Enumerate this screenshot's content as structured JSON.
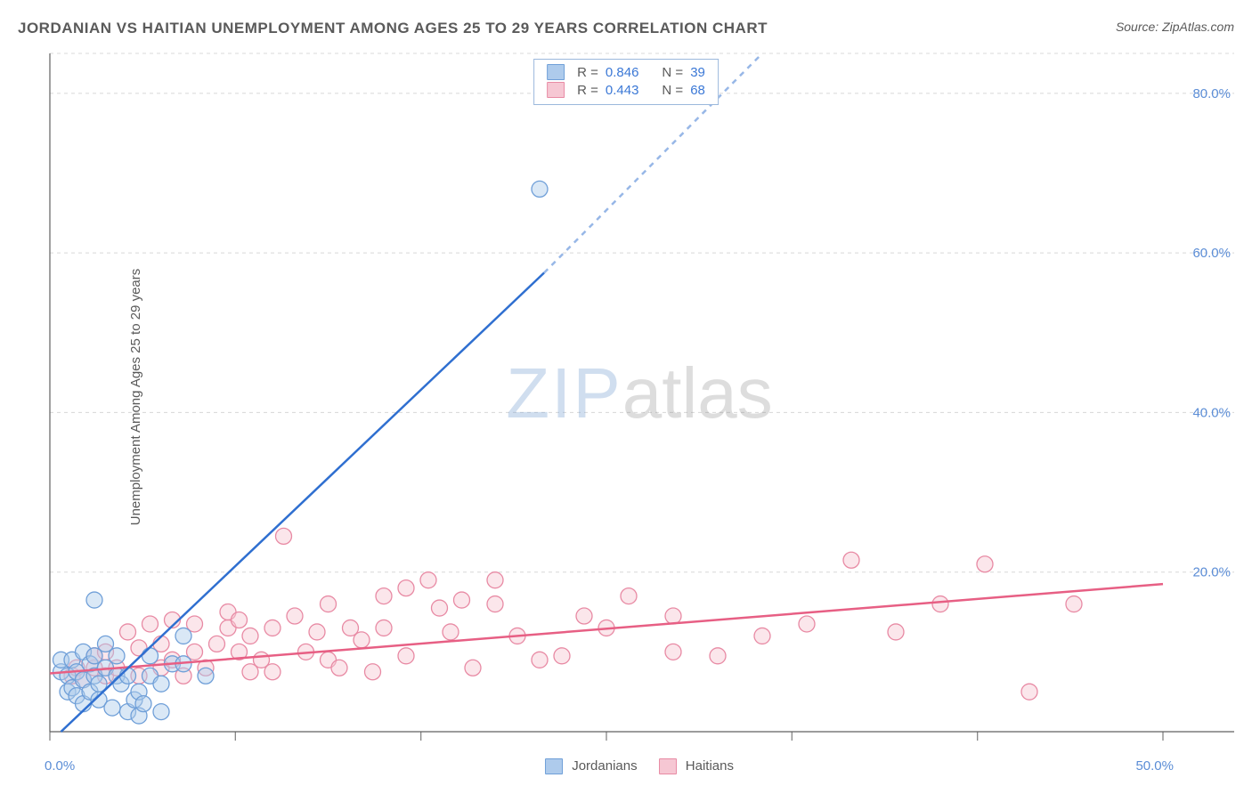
{
  "title": "JORDANIAN VS HAITIAN UNEMPLOYMENT AMONG AGES 25 TO 29 YEARS CORRELATION CHART",
  "source_label": "Source:",
  "source_value": "ZipAtlas.com",
  "ylabel": "Unemployment Among Ages 25 to 29 years",
  "watermark": {
    "zip": "ZIP",
    "atlas": "atlas"
  },
  "chart": {
    "type": "scatter",
    "background_color": "#ffffff",
    "grid_color": "#d8d8d8",
    "grid_dash": "4,4",
    "axis_color": "#606060",
    "tick_color": "#606060",
    "tick_label_color": "#5b8dd6",
    "xlim": [
      0,
      50
    ],
    "ylim": [
      0,
      85
    ],
    "xticks": [
      0,
      8.33,
      16.67,
      25,
      33.33,
      41.67,
      50
    ],
    "yticks": [
      20,
      40,
      60,
      80
    ],
    "ytick_labels": [
      "20.0%",
      "40.0%",
      "60.0%",
      "80.0%"
    ],
    "xmin_label": "0.0%",
    "xmax_label": "50.0%",
    "marker_radius": 9,
    "marker_opacity": 0.45,
    "series": [
      {
        "name": "Jordanians",
        "color_fill": "#aecbec",
        "color_stroke": "#6f9fd8",
        "line_color": "#2f6fd0",
        "line_width": 2.5,
        "trend": {
          "x1": 0.5,
          "y1": 0,
          "x2": 22.2,
          "y2": 57.5,
          "extend_dashed_to": {
            "x": 32,
            "y": 85
          }
        },
        "R": "0.846",
        "N": "39",
        "points": [
          [
            0.5,
            7.5
          ],
          [
            0.5,
            9
          ],
          [
            0.8,
            5
          ],
          [
            0.8,
            7
          ],
          [
            1.0,
            9
          ],
          [
            1.0,
            5.5
          ],
          [
            1.2,
            7.5
          ],
          [
            1.2,
            4.5
          ],
          [
            1.5,
            6.5
          ],
          [
            1.5,
            10
          ],
          [
            1.5,
            3.5
          ],
          [
            1.8,
            8.5
          ],
          [
            1.8,
            5
          ],
          [
            2.0,
            16.5
          ],
          [
            2.0,
            7
          ],
          [
            2.0,
            9.5
          ],
          [
            2.2,
            6
          ],
          [
            2.2,
            4
          ],
          [
            2.5,
            11
          ],
          [
            2.5,
            8
          ],
          [
            2.8,
            3
          ],
          [
            3.0,
            7
          ],
          [
            3.0,
            9.5
          ],
          [
            3.2,
            6
          ],
          [
            3.5,
            7
          ],
          [
            3.5,
            2.5
          ],
          [
            3.8,
            4
          ],
          [
            4.0,
            2
          ],
          [
            4.0,
            5
          ],
          [
            4.2,
            3.5
          ],
          [
            4.5,
            9.5
          ],
          [
            4.5,
            7
          ],
          [
            5.0,
            2.5
          ],
          [
            5.0,
            6
          ],
          [
            5.5,
            8.5
          ],
          [
            6.0,
            8.5
          ],
          [
            6.0,
            12
          ],
          [
            7.0,
            7
          ],
          [
            22.0,
            68
          ]
        ]
      },
      {
        "name": "Haitians",
        "color_fill": "#f6c7d3",
        "color_stroke": "#e88aa4",
        "line_color": "#e75f84",
        "line_width": 2.5,
        "trend": {
          "x1": 0,
          "y1": 7.3,
          "x2": 50,
          "y2": 18.5
        },
        "R": "0.443",
        "N": "68",
        "points": [
          [
            1.0,
            7
          ],
          [
            1.2,
            8
          ],
          [
            1.5,
            6.5
          ],
          [
            2.0,
            8
          ],
          [
            2.0,
            9.5
          ],
          [
            2.5,
            7
          ],
          [
            2.5,
            10
          ],
          [
            3.0,
            8
          ],
          [
            3.5,
            12.5
          ],
          [
            4.0,
            10.5
          ],
          [
            4.0,
            7
          ],
          [
            4.5,
            13.5
          ],
          [
            5.0,
            8
          ],
          [
            5.0,
            11
          ],
          [
            5.5,
            9
          ],
          [
            5.5,
            14
          ],
          [
            6.0,
            7
          ],
          [
            6.5,
            13.5
          ],
          [
            6.5,
            10
          ],
          [
            7.0,
            8
          ],
          [
            7.5,
            11
          ],
          [
            8.0,
            13
          ],
          [
            8.0,
            15
          ],
          [
            8.5,
            14
          ],
          [
            8.5,
            10
          ],
          [
            9.0,
            7.5
          ],
          [
            9.0,
            12
          ],
          [
            9.5,
            9
          ],
          [
            10.0,
            13
          ],
          [
            10.0,
            7.5
          ],
          [
            10.5,
            24.5
          ],
          [
            11.0,
            14.5
          ],
          [
            11.5,
            10
          ],
          [
            12.0,
            12.5
          ],
          [
            12.5,
            9
          ],
          [
            12.5,
            16
          ],
          [
            13.0,
            8
          ],
          [
            13.5,
            13
          ],
          [
            14.0,
            11.5
          ],
          [
            14.5,
            7.5
          ],
          [
            15.0,
            17
          ],
          [
            15.0,
            13
          ],
          [
            16.0,
            9.5
          ],
          [
            16.0,
            18
          ],
          [
            17.0,
            19
          ],
          [
            17.5,
            15.5
          ],
          [
            18.0,
            12.5
          ],
          [
            18.5,
            16.5
          ],
          [
            19.0,
            8
          ],
          [
            20.0,
            19
          ],
          [
            20.0,
            16
          ],
          [
            21.0,
            12
          ],
          [
            22.0,
            9
          ],
          [
            23.0,
            9.5
          ],
          [
            24.0,
            14.5
          ],
          [
            25.0,
            13
          ],
          [
            26.0,
            17
          ],
          [
            28.0,
            14.5
          ],
          [
            28.0,
            10
          ],
          [
            30.0,
            9.5
          ],
          [
            32.0,
            12
          ],
          [
            34.0,
            13.5
          ],
          [
            36.0,
            21.5
          ],
          [
            38.0,
            12.5
          ],
          [
            40.0,
            16
          ],
          [
            42.0,
            21
          ],
          [
            44.0,
            5
          ],
          [
            46.0,
            16
          ]
        ]
      }
    ]
  },
  "stats_legend_items": [
    {
      "swatch_fill": "#aecbec",
      "swatch_stroke": "#6f9fd8",
      "R_label": "R =",
      "R": "0.846",
      "N_label": "N =",
      "N": "39"
    },
    {
      "swatch_fill": "#f6c7d3",
      "swatch_stroke": "#e88aa4",
      "R_label": "R =",
      "R": "0.443",
      "N_label": "N =",
      "N": "68"
    }
  ],
  "bottom_legend_items": [
    {
      "swatch_fill": "#aecbec",
      "swatch_stroke": "#6f9fd8",
      "label": "Jordanians"
    },
    {
      "swatch_fill": "#f6c7d3",
      "swatch_stroke": "#e88aa4",
      "label": "Haitians"
    }
  ]
}
